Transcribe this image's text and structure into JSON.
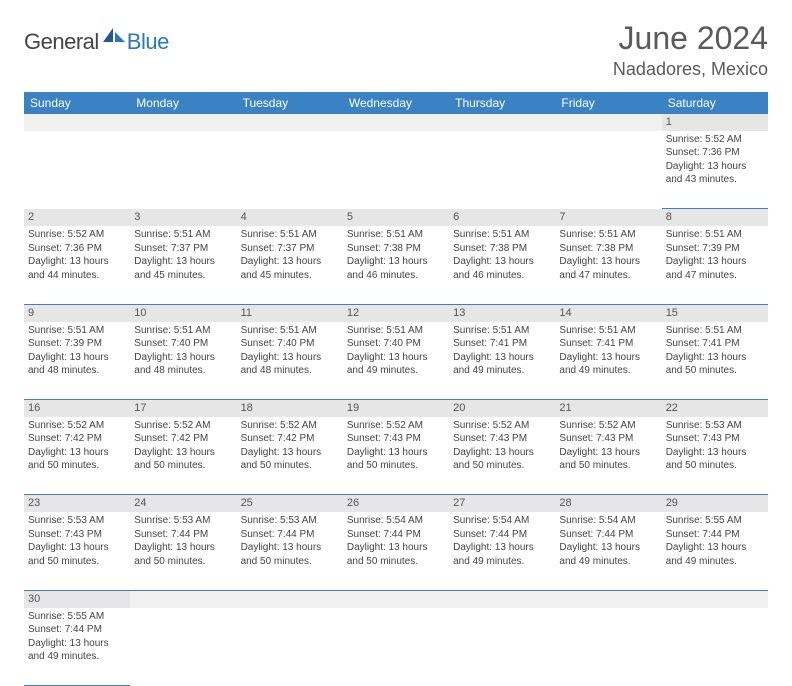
{
  "brand": {
    "part1": "General",
    "part2": "Blue"
  },
  "title": "June 2024",
  "location": "Nadadores, Mexico",
  "colors": {
    "header_bg": "#3b82c4",
    "header_text": "#ffffff",
    "daynum_bg": "#e6e6e6",
    "border": "#3b82c4",
    "logo_blue": "#2a7ab9",
    "logo_gray": "#444444",
    "body_text": "#444444"
  },
  "day_headers": [
    "Sunday",
    "Monday",
    "Tuesday",
    "Wednesday",
    "Thursday",
    "Friday",
    "Saturday"
  ],
  "weeks": [
    {
      "nums": [
        "",
        "",
        "",
        "",
        "",
        "",
        "1"
      ],
      "cells": [
        null,
        null,
        null,
        null,
        null,
        null,
        {
          "sunrise": "Sunrise: 5:52 AM",
          "sunset": "Sunset: 7:36 PM",
          "daylight1": "Daylight: 13 hours",
          "daylight2": "and 43 minutes."
        }
      ]
    },
    {
      "nums": [
        "2",
        "3",
        "4",
        "5",
        "6",
        "7",
        "8"
      ],
      "cells": [
        {
          "sunrise": "Sunrise: 5:52 AM",
          "sunset": "Sunset: 7:36 PM",
          "daylight1": "Daylight: 13 hours",
          "daylight2": "and 44 minutes."
        },
        {
          "sunrise": "Sunrise: 5:51 AM",
          "sunset": "Sunset: 7:37 PM",
          "daylight1": "Daylight: 13 hours",
          "daylight2": "and 45 minutes."
        },
        {
          "sunrise": "Sunrise: 5:51 AM",
          "sunset": "Sunset: 7:37 PM",
          "daylight1": "Daylight: 13 hours",
          "daylight2": "and 45 minutes."
        },
        {
          "sunrise": "Sunrise: 5:51 AM",
          "sunset": "Sunset: 7:38 PM",
          "daylight1": "Daylight: 13 hours",
          "daylight2": "and 46 minutes."
        },
        {
          "sunrise": "Sunrise: 5:51 AM",
          "sunset": "Sunset: 7:38 PM",
          "daylight1": "Daylight: 13 hours",
          "daylight2": "and 46 minutes."
        },
        {
          "sunrise": "Sunrise: 5:51 AM",
          "sunset": "Sunset: 7:38 PM",
          "daylight1": "Daylight: 13 hours",
          "daylight2": "and 47 minutes."
        },
        {
          "sunrise": "Sunrise: 5:51 AM",
          "sunset": "Sunset: 7:39 PM",
          "daylight1": "Daylight: 13 hours",
          "daylight2": "and 47 minutes."
        }
      ]
    },
    {
      "nums": [
        "9",
        "10",
        "11",
        "12",
        "13",
        "14",
        "15"
      ],
      "cells": [
        {
          "sunrise": "Sunrise: 5:51 AM",
          "sunset": "Sunset: 7:39 PM",
          "daylight1": "Daylight: 13 hours",
          "daylight2": "and 48 minutes."
        },
        {
          "sunrise": "Sunrise: 5:51 AM",
          "sunset": "Sunset: 7:40 PM",
          "daylight1": "Daylight: 13 hours",
          "daylight2": "and 48 minutes."
        },
        {
          "sunrise": "Sunrise: 5:51 AM",
          "sunset": "Sunset: 7:40 PM",
          "daylight1": "Daylight: 13 hours",
          "daylight2": "and 48 minutes."
        },
        {
          "sunrise": "Sunrise: 5:51 AM",
          "sunset": "Sunset: 7:40 PM",
          "daylight1": "Daylight: 13 hours",
          "daylight2": "and 49 minutes."
        },
        {
          "sunrise": "Sunrise: 5:51 AM",
          "sunset": "Sunset: 7:41 PM",
          "daylight1": "Daylight: 13 hours",
          "daylight2": "and 49 minutes."
        },
        {
          "sunrise": "Sunrise: 5:51 AM",
          "sunset": "Sunset: 7:41 PM",
          "daylight1": "Daylight: 13 hours",
          "daylight2": "and 49 minutes."
        },
        {
          "sunrise": "Sunrise: 5:51 AM",
          "sunset": "Sunset: 7:41 PM",
          "daylight1": "Daylight: 13 hours",
          "daylight2": "and 50 minutes."
        }
      ]
    },
    {
      "nums": [
        "16",
        "17",
        "18",
        "19",
        "20",
        "21",
        "22"
      ],
      "cells": [
        {
          "sunrise": "Sunrise: 5:52 AM",
          "sunset": "Sunset: 7:42 PM",
          "daylight1": "Daylight: 13 hours",
          "daylight2": "and 50 minutes."
        },
        {
          "sunrise": "Sunrise: 5:52 AM",
          "sunset": "Sunset: 7:42 PM",
          "daylight1": "Daylight: 13 hours",
          "daylight2": "and 50 minutes."
        },
        {
          "sunrise": "Sunrise: 5:52 AM",
          "sunset": "Sunset: 7:42 PM",
          "daylight1": "Daylight: 13 hours",
          "daylight2": "and 50 minutes."
        },
        {
          "sunrise": "Sunrise: 5:52 AM",
          "sunset": "Sunset: 7:43 PM",
          "daylight1": "Daylight: 13 hours",
          "daylight2": "and 50 minutes."
        },
        {
          "sunrise": "Sunrise: 5:52 AM",
          "sunset": "Sunset: 7:43 PM",
          "daylight1": "Daylight: 13 hours",
          "daylight2": "and 50 minutes."
        },
        {
          "sunrise": "Sunrise: 5:52 AM",
          "sunset": "Sunset: 7:43 PM",
          "daylight1": "Daylight: 13 hours",
          "daylight2": "and 50 minutes."
        },
        {
          "sunrise": "Sunrise: 5:53 AM",
          "sunset": "Sunset: 7:43 PM",
          "daylight1": "Daylight: 13 hours",
          "daylight2": "and 50 minutes."
        }
      ]
    },
    {
      "nums": [
        "23",
        "24",
        "25",
        "26",
        "27",
        "28",
        "29"
      ],
      "cells": [
        {
          "sunrise": "Sunrise: 5:53 AM",
          "sunset": "Sunset: 7:43 PM",
          "daylight1": "Daylight: 13 hours",
          "daylight2": "and 50 minutes."
        },
        {
          "sunrise": "Sunrise: 5:53 AM",
          "sunset": "Sunset: 7:44 PM",
          "daylight1": "Daylight: 13 hours",
          "daylight2": "and 50 minutes."
        },
        {
          "sunrise": "Sunrise: 5:53 AM",
          "sunset": "Sunset: 7:44 PM",
          "daylight1": "Daylight: 13 hours",
          "daylight2": "and 50 minutes."
        },
        {
          "sunrise": "Sunrise: 5:54 AM",
          "sunset": "Sunset: 7:44 PM",
          "daylight1": "Daylight: 13 hours",
          "daylight2": "and 50 minutes."
        },
        {
          "sunrise": "Sunrise: 5:54 AM",
          "sunset": "Sunset: 7:44 PM",
          "daylight1": "Daylight: 13 hours",
          "daylight2": "and 49 minutes."
        },
        {
          "sunrise": "Sunrise: 5:54 AM",
          "sunset": "Sunset: 7:44 PM",
          "daylight1": "Daylight: 13 hours",
          "daylight2": "and 49 minutes."
        },
        {
          "sunrise": "Sunrise: 5:55 AM",
          "sunset": "Sunset: 7:44 PM",
          "daylight1": "Daylight: 13 hours",
          "daylight2": "and 49 minutes."
        }
      ]
    },
    {
      "nums": [
        "30",
        "",
        "",
        "",
        "",
        "",
        ""
      ],
      "cells": [
        {
          "sunrise": "Sunrise: 5:55 AM",
          "sunset": "Sunset: 7:44 PM",
          "daylight1": "Daylight: 13 hours",
          "daylight2": "and 49 minutes."
        },
        null,
        null,
        null,
        null,
        null,
        null
      ]
    }
  ]
}
